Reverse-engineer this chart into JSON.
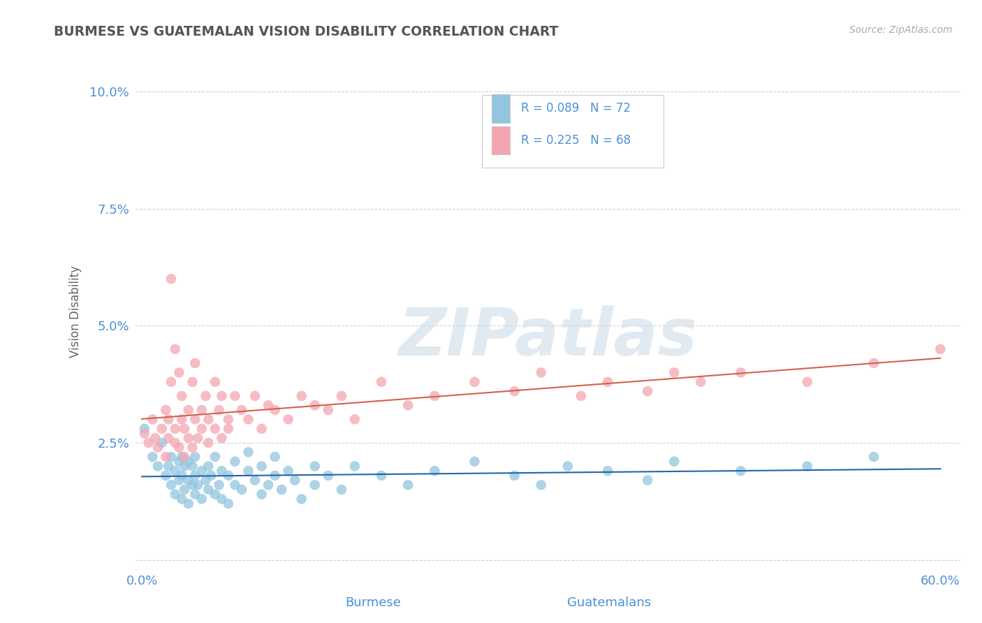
{
  "title": "BURMESE VS GUATEMALAN VISION DISABILITY CORRELATION CHART",
  "source": "Source: ZipAtlas.com",
  "ylabel": "Vision Disability",
  "xlabel_burmese": "Burmese",
  "xlabel_guatemalans": "Guatemalans",
  "xlim": [
    -0.005,
    0.615
  ],
  "ylim": [
    -0.002,
    0.108
  ],
  "yticks": [
    0.0,
    0.025,
    0.05,
    0.075,
    0.1
  ],
  "ytick_labels": [
    "",
    "2.5%",
    "5.0%",
    "7.5%",
    "10.0%"
  ],
  "xticks": [
    0.0,
    0.6
  ],
  "xtick_labels": [
    "0.0%",
    "60.0%"
  ],
  "legend_r_burmese": "R = 0.089",
  "legend_n_burmese": "N = 72",
  "legend_r_guatemalans": "R = 0.225",
  "legend_n_guatemalans": "N = 68",
  "color_burmese": "#92c5de",
  "color_guatemalans": "#f4a6b0",
  "color_line_burmese": "#2166ac",
  "color_line_guatemalans": "#d6604d",
  "title_color": "#555555",
  "axis_label_color": "#4a90d9",
  "tick_color": "#4a90d9",
  "background_color": "#ffffff",
  "grid_color": "#cccccc",
  "burmese_x": [
    0.002,
    0.008,
    0.012,
    0.015,
    0.018,
    0.02,
    0.022,
    0.022,
    0.025,
    0.025,
    0.028,
    0.028,
    0.03,
    0.03,
    0.03,
    0.032,
    0.032,
    0.035,
    0.035,
    0.035,
    0.038,
    0.038,
    0.04,
    0.04,
    0.04,
    0.042,
    0.045,
    0.045,
    0.048,
    0.05,
    0.05,
    0.052,
    0.055,
    0.055,
    0.058,
    0.06,
    0.06,
    0.065,
    0.065,
    0.07,
    0.07,
    0.075,
    0.08,
    0.08,
    0.085,
    0.09,
    0.09,
    0.095,
    0.1,
    0.1,
    0.105,
    0.11,
    0.115,
    0.12,
    0.13,
    0.13,
    0.14,
    0.15,
    0.16,
    0.18,
    0.2,
    0.22,
    0.25,
    0.28,
    0.3,
    0.32,
    0.35,
    0.38,
    0.4,
    0.45,
    0.5,
    0.55
  ],
  "burmese_y": [
    0.028,
    0.022,
    0.02,
    0.025,
    0.018,
    0.02,
    0.016,
    0.022,
    0.014,
    0.019,
    0.017,
    0.021,
    0.013,
    0.018,
    0.022,
    0.015,
    0.02,
    0.012,
    0.017,
    0.021,
    0.016,
    0.02,
    0.014,
    0.018,
    0.022,
    0.016,
    0.013,
    0.019,
    0.017,
    0.015,
    0.02,
    0.018,
    0.014,
    0.022,
    0.016,
    0.013,
    0.019,
    0.012,
    0.018,
    0.016,
    0.021,
    0.015,
    0.019,
    0.023,
    0.017,
    0.014,
    0.02,
    0.016,
    0.018,
    0.022,
    0.015,
    0.019,
    0.017,
    0.013,
    0.02,
    0.016,
    0.018,
    0.015,
    0.02,
    0.018,
    0.016,
    0.019,
    0.021,
    0.018,
    0.016,
    0.02,
    0.019,
    0.017,
    0.021,
    0.019,
    0.02,
    0.022
  ],
  "guatemalan_x": [
    0.002,
    0.005,
    0.008,
    0.01,
    0.012,
    0.015,
    0.018,
    0.018,
    0.02,
    0.02,
    0.022,
    0.022,
    0.025,
    0.025,
    0.025,
    0.028,
    0.028,
    0.03,
    0.03,
    0.032,
    0.032,
    0.035,
    0.035,
    0.038,
    0.038,
    0.04,
    0.04,
    0.042,
    0.045,
    0.045,
    0.048,
    0.05,
    0.05,
    0.055,
    0.055,
    0.058,
    0.06,
    0.06,
    0.065,
    0.065,
    0.07,
    0.075,
    0.08,
    0.085,
    0.09,
    0.095,
    0.1,
    0.11,
    0.12,
    0.13,
    0.14,
    0.15,
    0.16,
    0.18,
    0.2,
    0.22,
    0.25,
    0.28,
    0.3,
    0.33,
    0.35,
    0.38,
    0.4,
    0.42,
    0.45,
    0.5,
    0.55,
    0.6
  ],
  "guatemalan_y": [
    0.027,
    0.025,
    0.03,
    0.026,
    0.024,
    0.028,
    0.022,
    0.032,
    0.026,
    0.03,
    0.06,
    0.038,
    0.025,
    0.045,
    0.028,
    0.04,
    0.024,
    0.03,
    0.035,
    0.022,
    0.028,
    0.032,
    0.026,
    0.038,
    0.024,
    0.03,
    0.042,
    0.026,
    0.032,
    0.028,
    0.035,
    0.03,
    0.025,
    0.038,
    0.028,
    0.032,
    0.026,
    0.035,
    0.03,
    0.028,
    0.035,
    0.032,
    0.03,
    0.035,
    0.028,
    0.033,
    0.032,
    0.03,
    0.035,
    0.033,
    0.032,
    0.035,
    0.03,
    0.038,
    0.033,
    0.035,
    0.038,
    0.036,
    0.04,
    0.035,
    0.038,
    0.036,
    0.04,
    0.038,
    0.04,
    0.038,
    0.042,
    0.045
  ],
  "watermark_text": "ZIPatlas",
  "watermark_color": "#d0dde8",
  "watermark_alpha": 0.6
}
